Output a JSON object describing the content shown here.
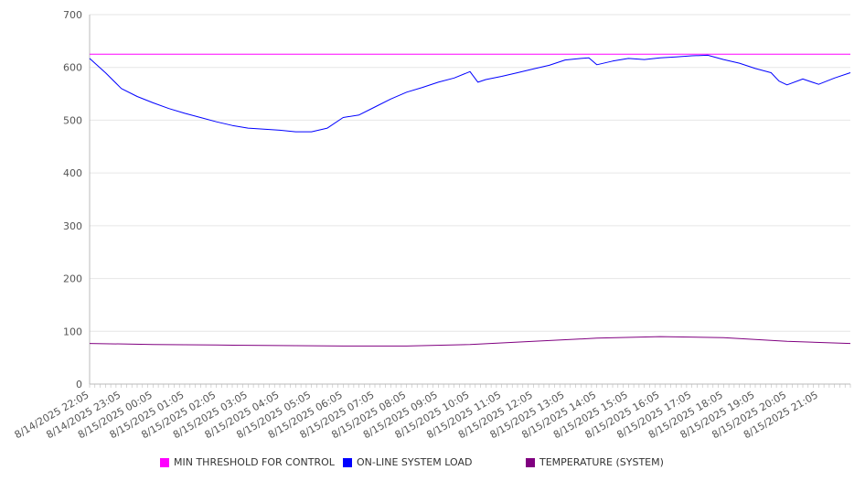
{
  "chart_data": {
    "type": "line",
    "title": "",
    "xlabel": "",
    "ylabel": "",
    "ylim": [
      0,
      700
    ],
    "yticks": [
      0,
      100,
      200,
      300,
      400,
      500,
      600,
      700
    ],
    "grid": "horizontal",
    "legend_position": "bottom",
    "x_tick_labels": [
      "8/14/2025 22:05",
      "8/14/2025 23:05",
      "8/15/2025 00:05",
      "8/15/2025 01:05",
      "8/15/2025 02:05",
      "8/15/2025 03:05",
      "8/15/2025 04:05",
      "8/15/2025 05:05",
      "8/15/2025 06:05",
      "8/15/2025 07:05",
      "8/15/2025 08:05",
      "8/15/2025 09:05",
      "8/15/2025 10:05",
      "8/15/2025 11:05",
      "8/15/2025 12:05",
      "8/15/2025 13:05",
      "8/15/2025 14:05",
      "8/15/2025 15:05",
      "8/15/2025 16:05",
      "8/15/2025 17:05",
      "8/15/2025 18:05",
      "8/15/2025 19:05",
      "8/15/2025 20:05",
      "8/15/2025 21:05"
    ],
    "x_end": "8/15/2025 22:05",
    "series": [
      {
        "name": "MIN THRESHOLD FOR CONTROL",
        "color": "#ff00ff",
        "x": [
          "8/14/2025 22:05",
          "8/15/2025 22:05"
        ],
        "values": [
          625,
          625
        ]
      },
      {
        "name": "ON-LINE SYSTEM LOAD",
        "color": "#0000ff",
        "x": [
          "8/14/2025 22:05",
          "8/14/2025 22:35",
          "8/14/2025 23:05",
          "8/14/2025 23:35",
          "8/15/2025 00:05",
          "8/15/2025 00:35",
          "8/15/2025 01:05",
          "8/15/2025 01:35",
          "8/15/2025 02:05",
          "8/15/2025 02:35",
          "8/15/2025 03:05",
          "8/15/2025 03:35",
          "8/15/2025 04:05",
          "8/15/2025 04:35",
          "8/15/2025 05:05",
          "8/15/2025 05:35",
          "8/15/2025 06:05",
          "8/15/2025 06:35",
          "8/15/2025 07:05",
          "8/15/2025 07:35",
          "8/15/2025 08:05",
          "8/15/2025 08:35",
          "8/15/2025 09:05",
          "8/15/2025 09:35",
          "8/15/2025 10:05",
          "8/15/2025 10:20",
          "8/15/2025 10:35",
          "8/15/2025 11:05",
          "8/15/2025 11:35",
          "8/15/2025 12:05",
          "8/15/2025 12:35",
          "8/15/2025 13:05",
          "8/15/2025 13:35",
          "8/15/2025 13:50",
          "8/15/2025 14:05",
          "8/15/2025 14:35",
          "8/15/2025 15:05",
          "8/15/2025 15:35",
          "8/15/2025 16:05",
          "8/15/2025 16:35",
          "8/15/2025 17:05",
          "8/15/2025 17:35",
          "8/15/2025 18:05",
          "8/15/2025 18:35",
          "8/15/2025 19:05",
          "8/15/2025 19:35",
          "8/15/2025 19:50",
          "8/15/2025 20:05",
          "8/15/2025 20:35",
          "8/15/2025 21:05",
          "8/15/2025 21:35",
          "8/15/2025 22:05"
        ],
        "values": [
          617,
          590,
          560,
          545,
          533,
          522,
          513,
          505,
          497,
          490,
          485,
          483,
          481,
          478,
          478,
          485,
          505,
          510,
          525,
          540,
          553,
          562,
          572,
          580,
          592,
          572,
          577,
          583,
          590,
          597,
          604,
          614,
          617,
          618,
          605,
          612,
          617,
          615,
          618,
          620,
          622,
          623,
          615,
          608,
          598,
          590,
          574,
          567,
          578,
          568,
          580,
          590
        ]
      },
      {
        "name": "TEMPERATURE (SYSTEM)",
        "color": "#800080",
        "x": [
          "8/14/2025 22:05",
          "8/15/2025 00:05",
          "8/15/2025 02:05",
          "8/15/2025 04:05",
          "8/15/2025 06:05",
          "8/15/2025 08:05",
          "8/15/2025 10:05",
          "8/15/2025 12:05",
          "8/15/2025 14:05",
          "8/15/2025 16:05",
          "8/15/2025 18:05",
          "8/15/2025 20:05",
          "8/15/2025 22:05"
        ],
        "values": [
          77,
          75,
          74,
          73,
          72,
          72,
          75,
          81,
          87,
          90,
          88,
          81,
          77
        ]
      }
    ]
  }
}
